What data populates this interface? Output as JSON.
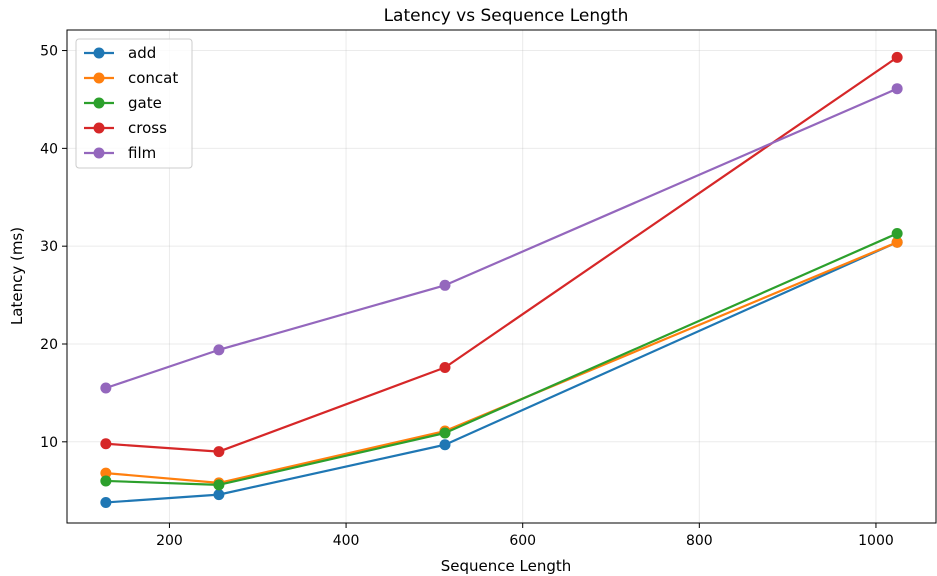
{
  "chart_data": {
    "type": "line",
    "title": "Latency vs Sequence Length",
    "xlabel": "Sequence Length",
    "ylabel": "Latency (ms)",
    "x": [
      128,
      256,
      512,
      1024
    ],
    "xlim": [
      84,
      1068
    ],
    "ylim": [
      1.7,
      52.1
    ],
    "xticks": [
      200,
      400,
      600,
      800,
      1000
    ],
    "yticks": [
      10,
      20,
      30,
      40,
      50
    ],
    "grid": true,
    "legend_position": "top-left",
    "series": [
      {
        "name": "add",
        "color": "#1f77b4",
        "values": [
          3.8,
          4.6,
          9.7,
          30.4
        ]
      },
      {
        "name": "concat",
        "color": "#ff7f0e",
        "values": [
          6.8,
          5.8,
          11.1,
          30.4
        ]
      },
      {
        "name": "gate",
        "color": "#2ca02c",
        "values": [
          6.0,
          5.6,
          10.9,
          31.3
        ]
      },
      {
        "name": "cross",
        "color": "#d62728",
        "values": [
          9.8,
          9.0,
          17.6,
          49.3
        ]
      },
      {
        "name": "film",
        "color": "#9467bd",
        "values": [
          15.5,
          19.4,
          26.0,
          46.1
        ]
      }
    ]
  }
}
